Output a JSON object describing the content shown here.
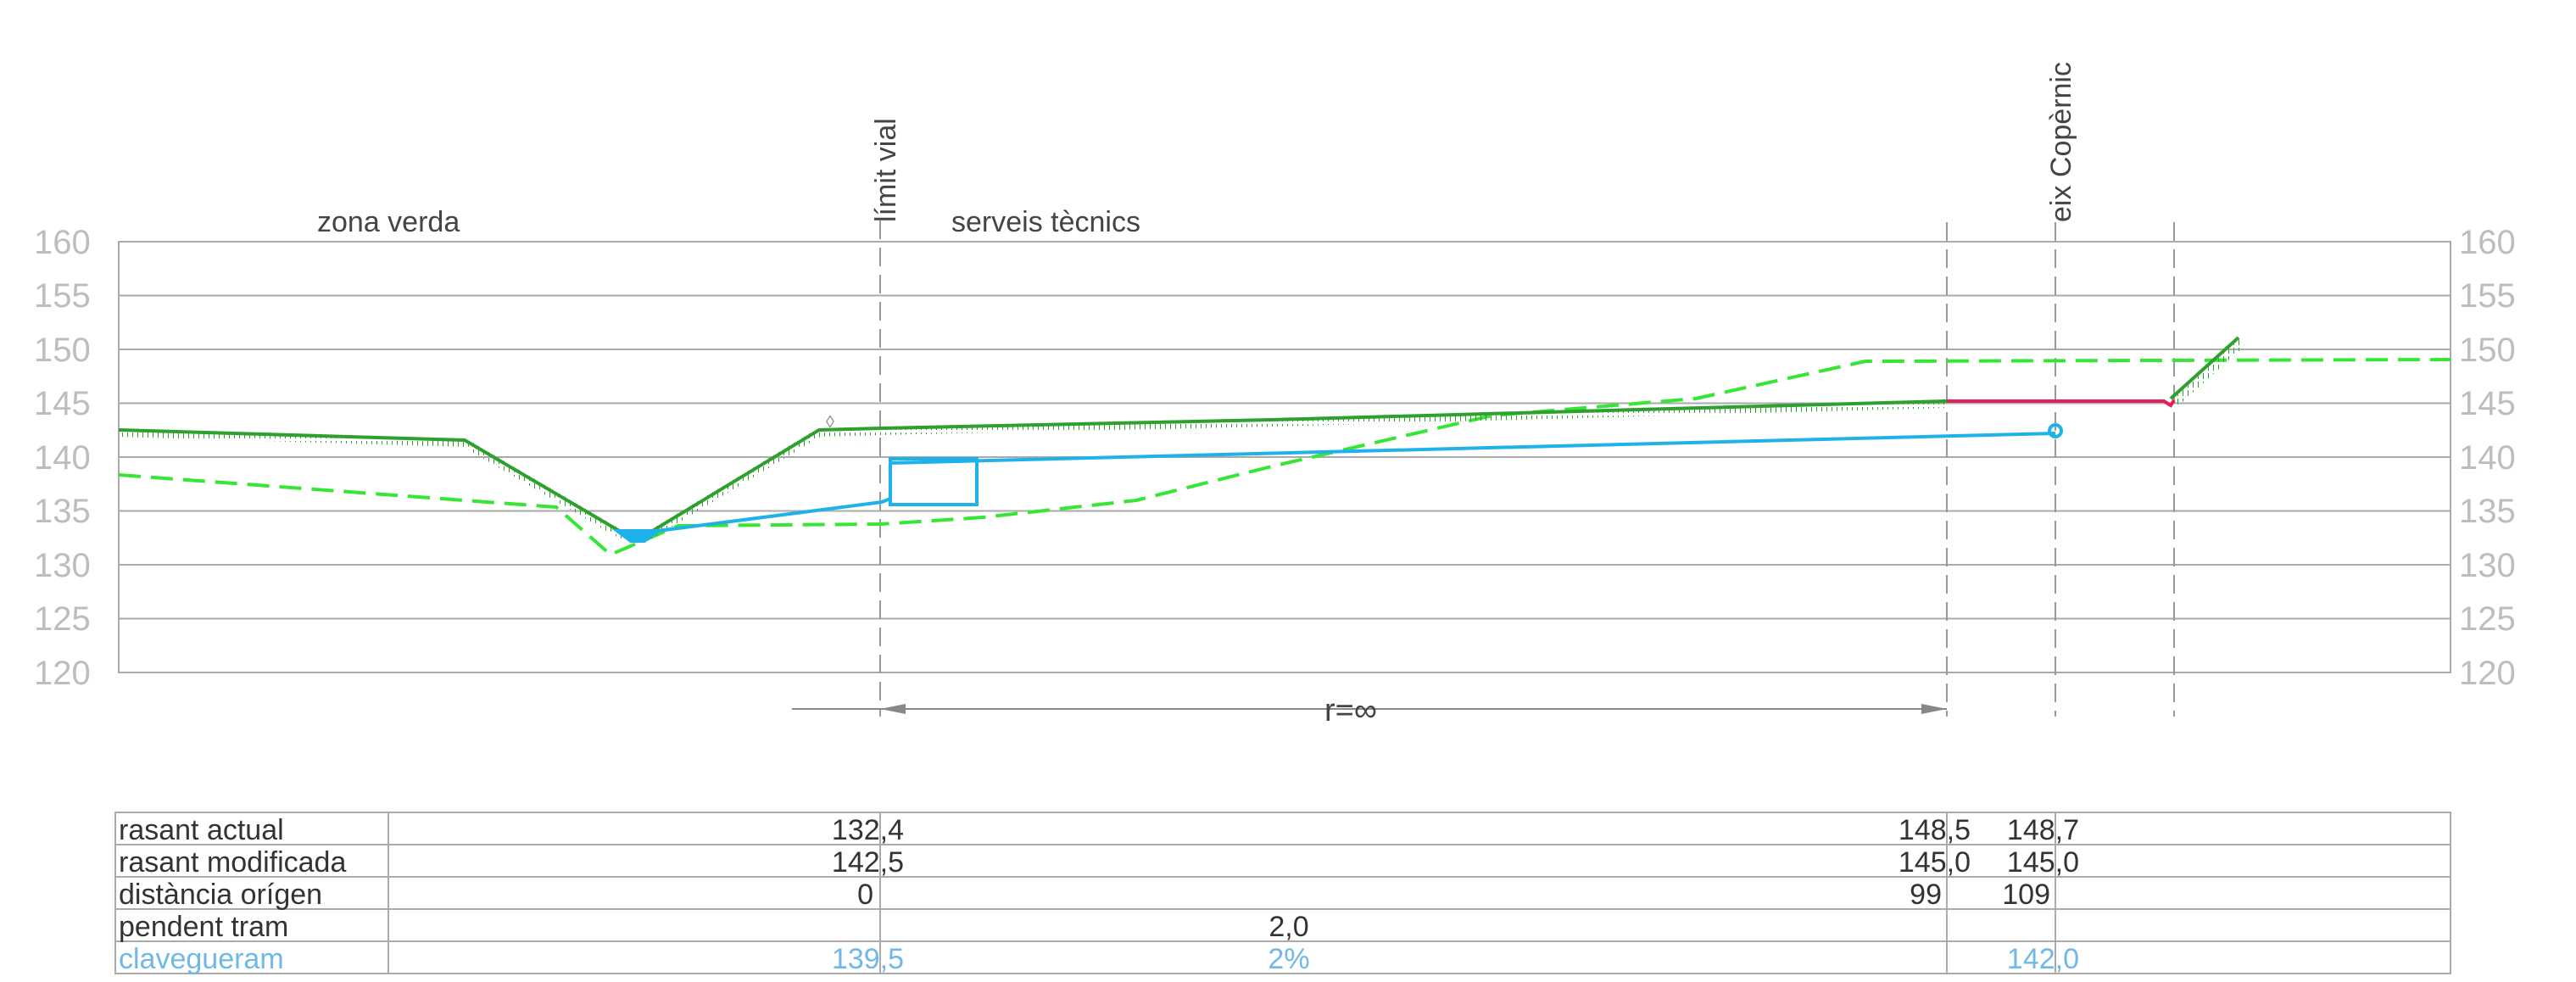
{
  "colors": {
    "existing_ground": "#2ea02e",
    "proposed_ground": "#35e635",
    "sewer": "#1fb2ea",
    "road": "#e0205a",
    "grid": "#aaaaaa",
    "axis_text": "#bdbdbd",
    "sewer_text": "#6fb8e8"
  },
  "labels": {
    "zona_verda": "zona verda",
    "serveis_tecnics": "serveis tècnics",
    "limit_vial": "límit vial",
    "eix_copernic": "eix Copèrnic",
    "radius": "r=∞"
  },
  "chart_data": {
    "type": "line",
    "y_ticks": [
      "160",
      "155",
      "150",
      "145",
      "140",
      "135",
      "130",
      "125",
      "120"
    ],
    "ylim": [
      120,
      160
    ],
    "grid": true,
    "series": [
      {
        "name": "rasant actual",
        "values_y": [
          142.4,
          141.4,
          132.8,
          133.0,
          142.6,
          142.5,
          145.0
        ]
      },
      {
        "name": "rasant modificada",
        "values_y": [
          138.2,
          135.2,
          130.8,
          133.3,
          133.6,
          135.8,
          148.6,
          149.0
        ]
      },
      {
        "name": "clavegueram",
        "values_y": [
          133.0,
          135.6,
          142.0
        ]
      }
    ]
  },
  "table": {
    "row_labels": [
      "rasant actual",
      "rasant modificada",
      "distància orígen",
      "pendent tram",
      "clavegueram"
    ],
    "rasant_actual": [
      "132,4",
      "148,5",
      "148,7"
    ],
    "rasant_modificada": [
      "142,5",
      "145,0",
      "145,0"
    ],
    "distancia_origen": [
      "0",
      "99",
      "109"
    ],
    "pendent_tram": [
      "2,0"
    ],
    "clavegueram": [
      "139,5",
      "2%",
      "142,0"
    ]
  }
}
